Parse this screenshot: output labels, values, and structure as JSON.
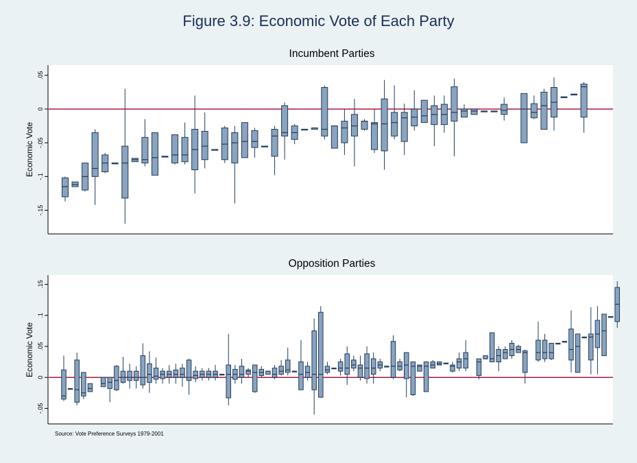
{
  "title": "Figure 3.9: Economic Vote of Each Party",
  "source_note": "Source: Vote Preference Surveys 1979-2001",
  "colors": {
    "background": "#eaf2f3",
    "plot_background": "#ffffff",
    "box_fill": "#8aa4bf",
    "box_stroke": "#1f3a5a",
    "zero_line": "#b0173f",
    "title": "#1a2f5a"
  },
  "chart_data": [
    {
      "type": "boxplot",
      "title": "Incumbent Parties",
      "ylabel": "Economic Vote",
      "ylim": [
        -0.185,
        0.065
      ],
      "yticks": [
        {
          "v": 0.05,
          "label": ".05"
        },
        {
          "v": 0,
          "label": "0"
        },
        {
          "v": -0.05,
          "label": "-.05"
        },
        {
          "v": -0.1,
          "label": "-.1"
        },
        {
          "v": -0.15,
          "label": "-.15"
        }
      ],
      "reference_line": 0,
      "grid": false,
      "boxes": [
        [
          1,
          -0.137,
          -0.13,
          -0.115,
          -0.102,
          -0.1
        ],
        [
          2,
          -0.115,
          -0.115,
          -0.112,
          -0.108,
          -0.108
        ],
        [
          3,
          -0.122,
          -0.12,
          -0.1,
          -0.08,
          -0.08
        ],
        [
          4,
          -0.142,
          -0.1,
          -0.088,
          -0.035,
          -0.03
        ],
        [
          5,
          -0.095,
          -0.093,
          -0.08,
          -0.068,
          -0.065
        ],
        [
          6,
          -0.08,
          -0.08,
          -0.08,
          -0.08,
          -0.08
        ],
        [
          7,
          -0.17,
          -0.132,
          -0.08,
          -0.055,
          0.03
        ],
        [
          8,
          -0.078,
          -0.078,
          -0.075,
          -0.073,
          -0.073
        ],
        [
          9,
          -0.085,
          -0.08,
          -0.075,
          -0.042,
          -0.015
        ],
        [
          10,
          -0.098,
          -0.098,
          -0.072,
          -0.035,
          -0.035
        ],
        [
          11,
          -0.07,
          -0.07,
          -0.07,
          -0.07,
          -0.07
        ],
        [
          12,
          -0.082,
          -0.08,
          -0.068,
          -0.038,
          -0.038
        ],
        [
          13,
          -0.082,
          -0.078,
          -0.068,
          -0.042,
          -0.02
        ],
        [
          14,
          -0.125,
          -0.09,
          -0.06,
          -0.03,
          0.02
        ],
        [
          15,
          -0.088,
          -0.075,
          -0.055,
          -0.033,
          -0.005
        ],
        [
          16,
          -0.06,
          -0.06,
          -0.06,
          -0.06,
          -0.06
        ],
        [
          17,
          -0.08,
          -0.075,
          -0.052,
          -0.028,
          -0.025
        ],
        [
          18,
          -0.14,
          -0.08,
          -0.05,
          -0.035,
          -0.025
        ],
        [
          19,
          -0.072,
          -0.072,
          -0.048,
          -0.02,
          -0.02
        ],
        [
          20,
          -0.072,
          -0.057,
          -0.048,
          -0.032,
          -0.028
        ],
        [
          21,
          -0.055,
          -0.055,
          -0.055,
          -0.055,
          -0.055
        ],
        [
          22,
          -0.098,
          -0.07,
          -0.04,
          -0.03,
          -0.025
        ],
        [
          23,
          -0.075,
          -0.04,
          -0.035,
          0.005,
          0.01
        ],
        [
          24,
          -0.052,
          -0.045,
          -0.035,
          -0.025,
          -0.022
        ],
        [
          25,
          -0.03,
          -0.03,
          -0.03,
          -0.03,
          -0.03
        ],
        [
          26,
          -0.03,
          -0.03,
          -0.028,
          -0.028,
          -0.028
        ],
        [
          27,
          -0.045,
          -0.04,
          -0.03,
          0.032,
          0.035
        ],
        [
          28,
          -0.058,
          -0.058,
          -0.025,
          -0.025,
          -0.025
        ],
        [
          29,
          -0.068,
          -0.05,
          -0.028,
          -0.018,
          0.0
        ],
        [
          30,
          -0.085,
          -0.04,
          -0.025,
          -0.008,
          0.015
        ],
        [
          31,
          -0.032,
          -0.03,
          -0.018,
          -0.018,
          -0.015
        ],
        [
          32,
          -0.065,
          -0.06,
          -0.022,
          -0.02,
          0.0
        ],
        [
          33,
          -0.09,
          -0.062,
          -0.022,
          0.015,
          0.043
        ],
        [
          34,
          -0.045,
          -0.04,
          -0.02,
          -0.005,
          0.035
        ],
        [
          35,
          -0.068,
          -0.048,
          -0.013,
          -0.005,
          0.008
        ],
        [
          36,
          -0.032,
          -0.025,
          -0.012,
          0.0,
          0.028
        ],
        [
          37,
          -0.02,
          -0.02,
          -0.01,
          0.013,
          0.013
        ],
        [
          38,
          -0.055,
          -0.023,
          -0.008,
          0.005,
          0.02
        ],
        [
          39,
          -0.035,
          -0.023,
          -0.008,
          0.007,
          0.02
        ],
        [
          40,
          -0.07,
          -0.018,
          -0.005,
          0.033,
          0.045
        ],
        [
          41,
          -0.012,
          -0.012,
          -0.003,
          0.0,
          0.007
        ],
        [
          42,
          -0.008,
          -0.008,
          -0.003,
          0.0,
          0.0
        ],
        [
          43,
          -0.003,
          -0.003,
          -0.003,
          -0.003,
          -0.003
        ],
        [
          44,
          -0.003,
          -0.003,
          -0.003,
          -0.003,
          -0.003
        ],
        [
          45,
          -0.017,
          -0.008,
          -0.002,
          0.007,
          0.017
        ],
        [
          47,
          -0.05,
          -0.05,
          0.0,
          0.023,
          0.023
        ],
        [
          48,
          -0.015,
          -0.013,
          -0.005,
          0.008,
          0.02
        ],
        [
          49,
          -0.03,
          -0.03,
          0.005,
          0.025,
          0.03
        ],
        [
          50,
          -0.032,
          -0.012,
          0.01,
          0.032,
          0.047
        ],
        [
          51,
          0.018,
          0.018,
          0.018,
          0.018,
          0.018
        ],
        [
          52,
          0.022,
          0.022,
          0.022,
          0.022,
          0.022
        ],
        [
          53,
          -0.035,
          -0.012,
          0.033,
          0.037,
          0.04
        ]
      ]
    },
    {
      "type": "boxplot",
      "title": "Opposition Parties",
      "ylabel": "Economic Vote",
      "ylim": [
        -0.075,
        0.165
      ],
      "yticks": [
        {
          "v": 0.15,
          "label": ".15"
        },
        {
          "v": 0.1,
          "label": ".1"
        },
        {
          "v": 0.05,
          "label": ".05"
        },
        {
          "v": 0,
          "label": "0"
        },
        {
          "v": -0.05,
          "label": "-.05"
        }
      ],
      "reference_line": 0,
      "grid": false,
      "boxes": [
        [
          1,
          -0.038,
          -0.035,
          -0.03,
          0.012,
          0.035
        ],
        [
          2,
          -0.018,
          -0.018,
          -0.018,
          -0.018,
          -0.018
        ],
        [
          3,
          -0.045,
          -0.04,
          -0.02,
          0.028,
          0.04
        ],
        [
          4,
          -0.035,
          -0.03,
          -0.025,
          0.008,
          0.008
        ],
        [
          5,
          -0.023,
          -0.023,
          -0.018,
          -0.01,
          -0.01
        ],
        [
          7,
          -0.015,
          -0.015,
          -0.01,
          0.0,
          0.0
        ],
        [
          8,
          -0.04,
          -0.018,
          -0.008,
          0.0,
          0.0
        ],
        [
          9,
          -0.022,
          -0.02,
          -0.005,
          0.018,
          0.02
        ],
        [
          10,
          -0.01,
          -0.008,
          0.0,
          0.01,
          0.033
        ],
        [
          11,
          -0.018,
          -0.005,
          0.0,
          0.01,
          0.022
        ],
        [
          12,
          -0.018,
          -0.005,
          0.0,
          0.01,
          0.018
        ],
        [
          13,
          -0.018,
          -0.012,
          0.0,
          0.035,
          0.055
        ],
        [
          14,
          -0.025,
          -0.008,
          0.005,
          0.022,
          0.042
        ],
        [
          15,
          -0.01,
          -0.003,
          0.002,
          0.015,
          0.032
        ],
        [
          16,
          -0.01,
          -0.002,
          0.005,
          0.01,
          0.015
        ],
        [
          17,
          -0.01,
          0.0,
          0.005,
          0.01,
          0.02
        ],
        [
          18,
          -0.01,
          0.0,
          0.005,
          0.012,
          0.022
        ],
        [
          19,
          -0.015,
          0.0,
          0.005,
          0.015,
          0.022
        ],
        [
          20,
          -0.028,
          -0.005,
          0.0,
          0.028,
          0.03
        ],
        [
          21,
          -0.008,
          -0.002,
          0.003,
          0.01,
          0.018
        ],
        [
          22,
          -0.005,
          0.0,
          0.005,
          0.01,
          0.015
        ],
        [
          23,
          -0.005,
          0.0,
          0.005,
          0.01,
          0.015
        ],
        [
          24,
          -0.005,
          0.0,
          0.005,
          0.01,
          0.02
        ],
        [
          25,
          0.005,
          0.005,
          0.005,
          0.005,
          0.005
        ],
        [
          26,
          -0.045,
          -0.033,
          0.005,
          0.02,
          0.07
        ],
        [
          27,
          -0.01,
          -0.003,
          0.005,
          0.013,
          0.02
        ],
        [
          28,
          -0.01,
          0.0,
          0.005,
          0.018,
          0.03
        ],
        [
          29,
          0.0,
          0.005,
          0.01,
          0.012,
          0.015
        ],
        [
          30,
          -0.025,
          -0.023,
          0.008,
          0.02,
          0.02
        ],
        [
          31,
          0.0,
          0.003,
          0.008,
          0.013,
          0.018
        ],
        [
          32,
          0.005,
          0.005,
          0.01,
          0.01,
          0.01
        ],
        [
          33,
          -0.003,
          0.0,
          0.005,
          0.015,
          0.02
        ],
        [
          34,
          0.003,
          0.005,
          0.01,
          0.018,
          0.028
        ],
        [
          35,
          0.003,
          0.008,
          0.012,
          0.028,
          0.048
        ],
        [
          36,
          0.01,
          0.01,
          0.01,
          0.01,
          0.01
        ],
        [
          37,
          -0.02,
          -0.02,
          0.005,
          0.025,
          0.06
        ],
        [
          38,
          -0.005,
          0.0,
          0.008,
          0.018,
          0.025
        ],
        [
          39,
          -0.06,
          -0.02,
          0.005,
          0.075,
          0.095
        ],
        [
          40,
          -0.033,
          -0.032,
          0.005,
          0.105,
          0.115
        ],
        [
          41,
          0.005,
          0.008,
          0.012,
          0.018,
          0.025
        ],
        [
          42,
          0.015,
          0.015,
          0.015,
          0.015,
          0.015
        ],
        [
          43,
          0.003,
          0.01,
          0.015,
          0.025,
          0.03
        ],
        [
          44,
          -0.012,
          0.005,
          0.015,
          0.038,
          0.05
        ],
        [
          45,
          0.01,
          0.015,
          0.02,
          0.028,
          0.035
        ],
        [
          46,
          -0.005,
          0.0,
          0.015,
          0.02,
          0.035
        ],
        [
          47,
          -0.01,
          -0.002,
          0.015,
          0.038,
          0.05
        ],
        [
          48,
          -0.01,
          0.005,
          0.015,
          0.03,
          0.04
        ],
        [
          49,
          0.01,
          0.015,
          0.02,
          0.025,
          0.03
        ],
        [
          50,
          0.018,
          0.018,
          0.018,
          0.018,
          0.018
        ],
        [
          51,
          -0.003,
          0.0,
          0.018,
          0.058,
          0.068
        ],
        [
          52,
          0.01,
          0.012,
          0.018,
          0.025,
          0.03
        ],
        [
          53,
          -0.032,
          -0.002,
          0.02,
          0.04,
          0.04
        ],
        [
          54,
          -0.03,
          -0.028,
          0.018,
          0.025,
          0.025
        ],
        [
          55,
          0.01,
          0.01,
          0.018,
          0.02,
          0.02
        ],
        [
          56,
          -0.023,
          -0.023,
          0.018,
          0.025,
          0.025
        ],
        [
          57,
          0.015,
          0.015,
          0.02,
          0.025,
          0.028
        ],
        [
          58,
          0.02,
          0.02,
          0.022,
          0.025,
          0.025
        ],
        [
          59,
          0.023,
          0.023,
          0.023,
          0.023,
          0.023
        ],
        [
          60,
          0.008,
          0.01,
          0.018,
          0.02,
          0.025
        ],
        [
          61,
          0.01,
          0.015,
          0.025,
          0.03,
          0.04
        ],
        [
          62,
          0.01,
          0.015,
          0.03,
          0.04,
          0.06
        ],
        [
          64,
          -0.003,
          0.003,
          0.025,
          0.03,
          0.03
        ],
        [
          65,
          0.03,
          0.03,
          0.03,
          0.035,
          0.035
        ],
        [
          66,
          0.025,
          0.025,
          0.03,
          0.072,
          0.072
        ],
        [
          67,
          0.01,
          0.025,
          0.035,
          0.045,
          0.05
        ],
        [
          68,
          0.03,
          0.03,
          0.04,
          0.045,
          0.05
        ],
        [
          69,
          0.03,
          0.035,
          0.045,
          0.055,
          0.06
        ],
        [
          70,
          0.04,
          0.04,
          0.045,
          0.05,
          0.052
        ],
        [
          71,
          -0.01,
          0.008,
          0.04,
          0.043,
          0.045
        ],
        [
          73,
          0.025,
          0.028,
          0.04,
          0.06,
          0.09
        ],
        [
          74,
          0.025,
          0.03,
          0.04,
          0.06,
          0.07
        ],
        [
          75,
          0.028,
          0.03,
          0.04,
          0.055,
          0.055
        ],
        [
          76,
          0.055,
          0.055,
          0.055,
          0.055,
          0.055
        ],
        [
          77,
          0.058,
          0.058,
          0.058,
          0.058,
          0.058
        ],
        [
          78,
          0.008,
          0.028,
          0.045,
          0.078,
          0.108
        ],
        [
          79,
          0.008,
          0.008,
          0.05,
          0.07,
          0.07
        ],
        [
          80,
          0.065,
          0.065,
          0.065,
          0.065,
          0.065
        ],
        [
          81,
          0.005,
          0.028,
          0.065,
          0.07,
          0.113
        ],
        [
          82,
          0.005,
          0.048,
          0.07,
          0.092,
          0.115
        ],
        [
          83,
          0.035,
          0.035,
          0.075,
          0.102,
          0.102
        ],
        [
          84,
          0.098,
          0.098,
          0.098,
          0.098,
          0.098
        ],
        [
          85,
          0.08,
          0.09,
          0.118,
          0.145,
          0.155
        ]
      ]
    }
  ]
}
